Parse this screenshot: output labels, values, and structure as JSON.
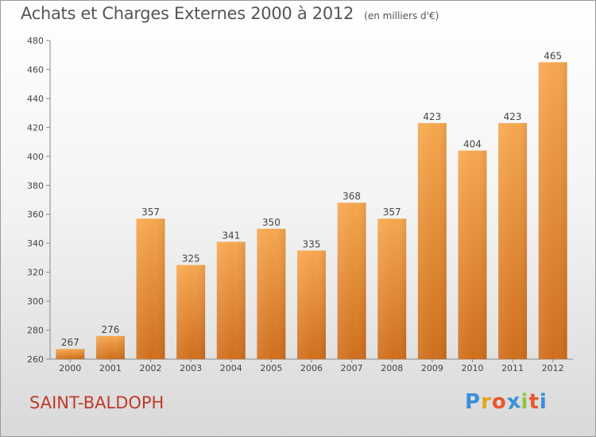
{
  "header": {
    "title": "Achats et Charges Externes 2000 à 2012",
    "unit": "(en milliers d'€)"
  },
  "footer": {
    "city": "SAINT-BALDOPH",
    "logo_letters": [
      "P",
      "r",
      "o",
      "x",
      "i",
      "t",
      "i"
    ],
    "logo_colors": [
      "#3a8fd8",
      "#e5a51c",
      "#e8562e",
      "#3a8fd8",
      "#8cc63f",
      "#e8562e",
      "#3a8fd8"
    ]
  },
  "colors": {
    "bar_top": "#f6a74f",
    "bar_bottom": "#cf6e1c",
    "city": "#c0392b"
  },
  "chart_data": {
    "type": "bar",
    "title": "Achats et Charges Externes 2000 à 2012",
    "subtitle": "(en milliers d'€)",
    "categories": [
      "2000",
      "2001",
      "2002",
      "2003",
      "2004",
      "2005",
      "2006",
      "2007",
      "2008",
      "2009",
      "2010",
      "2011",
      "2012"
    ],
    "values": [
      267,
      276,
      357,
      325,
      341,
      350,
      335,
      368,
      357,
      423,
      404,
      423,
      465
    ],
    "ylim": [
      260,
      480
    ],
    "yticks": [
      260,
      280,
      300,
      320,
      340,
      360,
      380,
      400,
      420,
      440,
      460,
      480
    ],
    "grid": false,
    "data_labels": true
  }
}
